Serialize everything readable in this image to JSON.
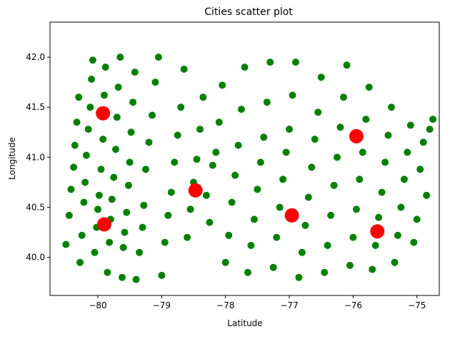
{
  "chart_data": {
    "type": "scatter",
    "title": "Cities scatter plot",
    "xlabel": "Latitude",
    "ylabel": "Longitude",
    "xlim": [
      -80.75,
      -74.65
    ],
    "ylim": [
      39.62,
      42.35
    ],
    "xticks": [
      -80,
      -79,
      -78,
      -77,
      -76,
      -75
    ],
    "yticks": [
      40.0,
      40.5,
      41.0,
      41.5,
      42.0
    ],
    "xtick_labels": [
      "−80",
      "−79",
      "−78",
      "−77",
      "−76",
      "−75"
    ],
    "ytick_labels": [
      "40.0",
      "40.5",
      "41.0",
      "41.5",
      "42.0"
    ],
    "grid": false,
    "legend": "none",
    "series": [
      {
        "color": "#008000",
        "marker": "circle-small",
        "points": [
          [
            -80.5,
            40.13
          ],
          [
            -80.45,
            40.42
          ],
          [
            -80.42,
            40.68
          ],
          [
            -80.38,
            40.9
          ],
          [
            -80.36,
            41.12
          ],
          [
            -80.33,
            41.35
          ],
          [
            -80.3,
            41.6
          ],
          [
            -80.28,
            39.95
          ],
          [
            -80.25,
            40.22
          ],
          [
            -80.22,
            40.55
          ],
          [
            -80.2,
            40.75
          ],
          [
            -80.18,
            41.02
          ],
          [
            -80.15,
            41.28
          ],
          [
            -80.12,
            41.5
          ],
          [
            -80.1,
            41.78
          ],
          [
            -80.08,
            41.97
          ],
          [
            -80.05,
            40.05
          ],
          [
            -80.02,
            40.3
          ],
          [
            -80,
            40.48
          ],
          [
            -79.98,
            40.62
          ],
          [
            -79.95,
            40.88
          ],
          [
            -79.92,
            41.18
          ],
          [
            -79.9,
            41.62
          ],
          [
            -79.88,
            41.9
          ],
          [
            -79.85,
            39.85
          ],
          [
            -79.82,
            40.15
          ],
          [
            -79.8,
            40.38
          ],
          [
            -79.78,
            40.58
          ],
          [
            -79.75,
            40.8
          ],
          [
            -79.72,
            41.08
          ],
          [
            -79.7,
            41.4
          ],
          [
            -79.68,
            41.7
          ],
          [
            -79.65,
            42.0
          ],
          [
            -79.62,
            39.8
          ],
          [
            -79.6,
            40.1
          ],
          [
            -79.58,
            40.25
          ],
          [
            -79.55,
            40.45
          ],
          [
            -79.52,
            40.72
          ],
          [
            -79.5,
            40.95
          ],
          [
            -79.48,
            41.25
          ],
          [
            -79.45,
            41.55
          ],
          [
            -79.42,
            41.85
          ],
          [
            -79.4,
            39.78
          ],
          [
            -79.35,
            40.05
          ],
          [
            -79.3,
            40.3
          ],
          [
            -79.28,
            40.52
          ],
          [
            -79.25,
            40.88
          ],
          [
            -79.2,
            41.15
          ],
          [
            -79.15,
            41.42
          ],
          [
            -79.1,
            41.75
          ],
          [
            -79.05,
            42.0
          ],
          [
            -79,
            39.82
          ],
          [
            -78.95,
            40.15
          ],
          [
            -78.9,
            40.42
          ],
          [
            -78.85,
            40.65
          ],
          [
            -78.8,
            40.95
          ],
          [
            -78.75,
            41.22
          ],
          [
            -78.7,
            41.5
          ],
          [
            -78.65,
            41.88
          ],
          [
            -78.6,
            40.2
          ],
          [
            -78.55,
            40.48
          ],
          [
            -78.5,
            40.75
          ],
          [
            -78.45,
            40.98
          ],
          [
            -78.4,
            41.28
          ],
          [
            -78.35,
            41.6
          ],
          [
            -78.3,
            40.62
          ],
          [
            -78.25,
            40.35
          ],
          [
            -78.2,
            40.92
          ],
          [
            -78.15,
            41.05
          ],
          [
            -78.1,
            41.35
          ],
          [
            -78.05,
            41.72
          ],
          [
            -78,
            39.95
          ],
          [
            -77.95,
            40.22
          ],
          [
            -77.9,
            40.55
          ],
          [
            -77.85,
            40.82
          ],
          [
            -77.8,
            41.12
          ],
          [
            -77.75,
            41.48
          ],
          [
            -77.7,
            41.9
          ],
          [
            -77.65,
            39.85
          ],
          [
            -77.6,
            40.12
          ],
          [
            -77.55,
            40.38
          ],
          [
            -77.5,
            40.68
          ],
          [
            -77.45,
            40.95
          ],
          [
            -77.4,
            41.2
          ],
          [
            -77.35,
            41.55
          ],
          [
            -77.3,
            41.95
          ],
          [
            -77.25,
            39.9
          ],
          [
            -77.2,
            40.2
          ],
          [
            -77.15,
            40.5
          ],
          [
            -77.1,
            40.78
          ],
          [
            -77.05,
            41.05
          ],
          [
            -77,
            41.28
          ],
          [
            -76.95,
            41.62
          ],
          [
            -76.9,
            41.95
          ],
          [
            -76.85,
            39.8
          ],
          [
            -76.8,
            40.05
          ],
          [
            -76.75,
            40.32
          ],
          [
            -76.7,
            40.6
          ],
          [
            -76.65,
            40.9
          ],
          [
            -76.6,
            41.18
          ],
          [
            -76.55,
            41.45
          ],
          [
            -76.5,
            41.8
          ],
          [
            -76.45,
            39.85
          ],
          [
            -76.4,
            40.12
          ],
          [
            -76.35,
            40.42
          ],
          [
            -76.3,
            40.72
          ],
          [
            -76.25,
            41.0
          ],
          [
            -76.2,
            41.3
          ],
          [
            -76.15,
            41.6
          ],
          [
            -76.1,
            41.92
          ],
          [
            -76.05,
            39.92
          ],
          [
            -76,
            40.2
          ],
          [
            -75.95,
            40.48
          ],
          [
            -75.9,
            40.78
          ],
          [
            -75.85,
            41.05
          ],
          [
            -75.8,
            41.38
          ],
          [
            -75.75,
            41.7
          ],
          [
            -75.7,
            39.88
          ],
          [
            -75.65,
            40.12
          ],
          [
            -75.6,
            40.4
          ],
          [
            -75.55,
            40.65
          ],
          [
            -75.5,
            40.95
          ],
          [
            -75.45,
            41.22
          ],
          [
            -75.4,
            41.5
          ],
          [
            -75.35,
            39.95
          ],
          [
            -75.3,
            40.22
          ],
          [
            -75.25,
            40.5
          ],
          [
            -75.2,
            40.78
          ],
          [
            -75.15,
            41.05
          ],
          [
            -75.1,
            41.32
          ],
          [
            -75.05,
            40.15
          ],
          [
            -75,
            40.38
          ],
          [
            -74.95,
            40.88
          ],
          [
            -74.9,
            41.15
          ],
          [
            -74.85,
            40.62
          ],
          [
            -74.8,
            41.28
          ],
          [
            -74.75,
            41.38
          ]
        ]
      },
      {
        "color": "#ff0000",
        "marker": "circle-large",
        "points": [
          [
            -79.92,
            41.44
          ],
          [
            -79.9,
            40.33
          ],
          [
            -78.47,
            40.67
          ],
          [
            -76.96,
            40.42
          ],
          [
            -75.95,
            41.21
          ],
          [
            -75.62,
            40.26
          ]
        ]
      }
    ]
  }
}
